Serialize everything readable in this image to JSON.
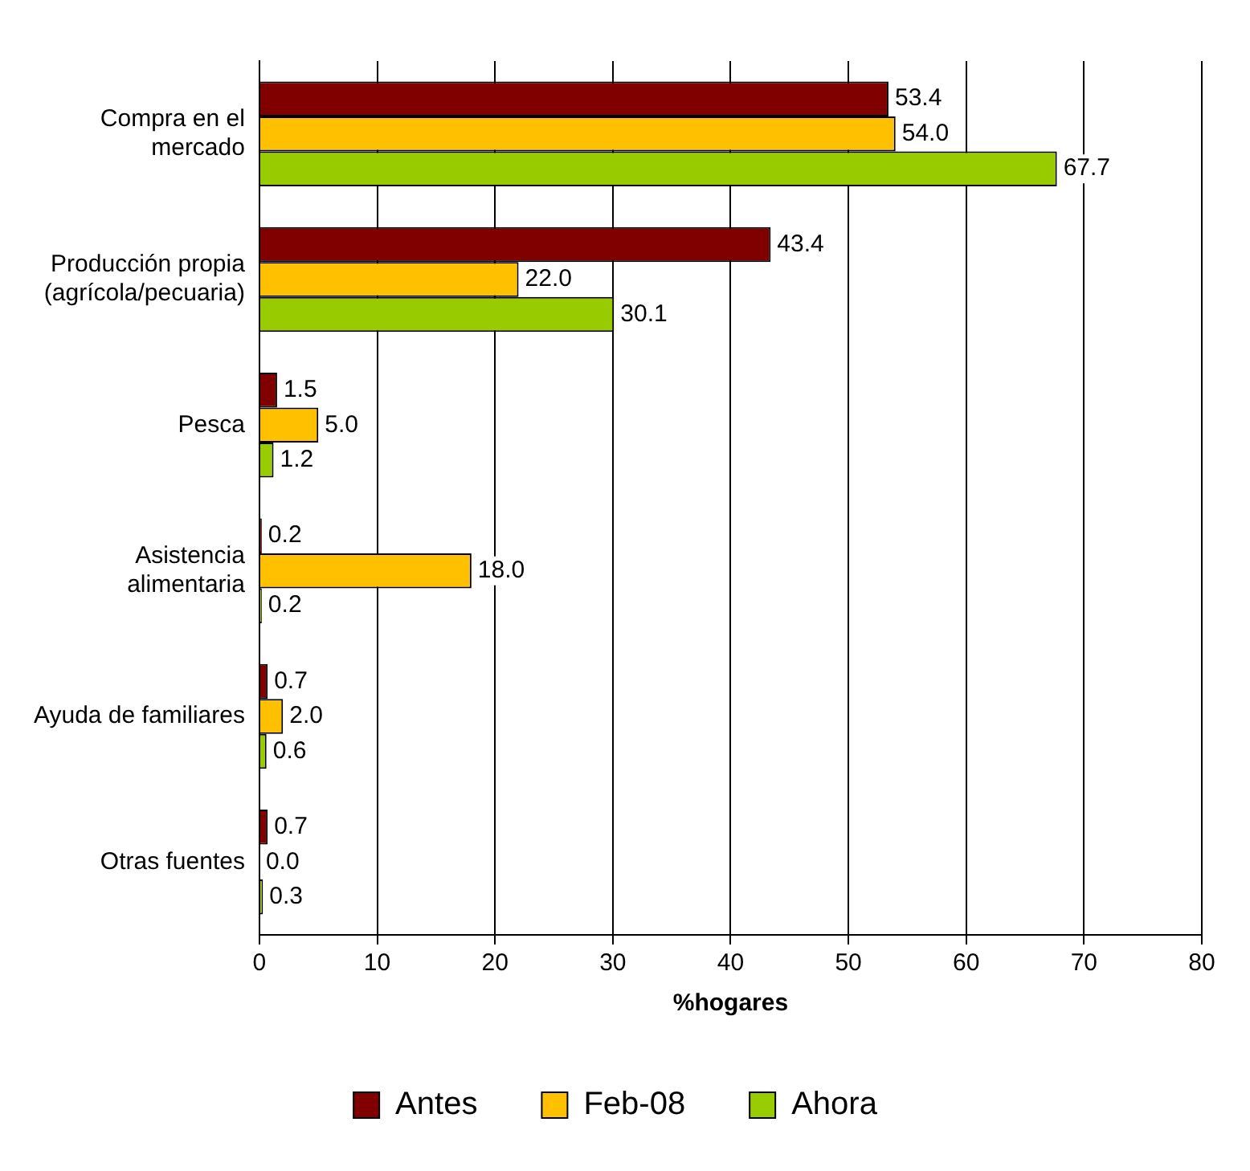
{
  "chart_data": {
    "type": "bar",
    "orientation": "horizontal",
    "xlabel": "%hogares",
    "categories": [
      "Compra en el mercado",
      "Producción propia (agrícola/pecuaria)",
      "Pesca",
      "Asistencia alimentaria",
      "Ayuda de familiares",
      "Otras fuentes"
    ],
    "series": [
      {
        "name": "Antes",
        "color": "#800000",
        "values": [
          53.4,
          43.4,
          1.5,
          0.2,
          0.7,
          0.7
        ],
        "value_labels": [
          "53.4",
          "43.4",
          "1.5",
          "0.2",
          "0.7",
          "0.7"
        ]
      },
      {
        "name": "Feb-08",
        "color": "#ffc000",
        "values": [
          54.0,
          22.0,
          5.0,
          18.0,
          2.0,
          0.0
        ],
        "value_labels": [
          "54.0",
          "22.0",
          "5.0",
          "18.0",
          "2.0",
          "0.0"
        ]
      },
      {
        "name": "Ahora",
        "color": "#99cc00",
        "values": [
          67.7,
          30.1,
          1.2,
          0.2,
          0.6,
          0.3
        ],
        "value_labels": [
          "67.7",
          "30.1",
          "1.2",
          "0.2",
          "0.6",
          "0.3"
        ]
      }
    ],
    "xlim": [
      0,
      80
    ],
    "xticks": [
      0,
      10,
      20,
      30,
      40,
      50,
      60,
      70,
      80
    ],
    "grid": "x",
    "legend": "bottom"
  }
}
